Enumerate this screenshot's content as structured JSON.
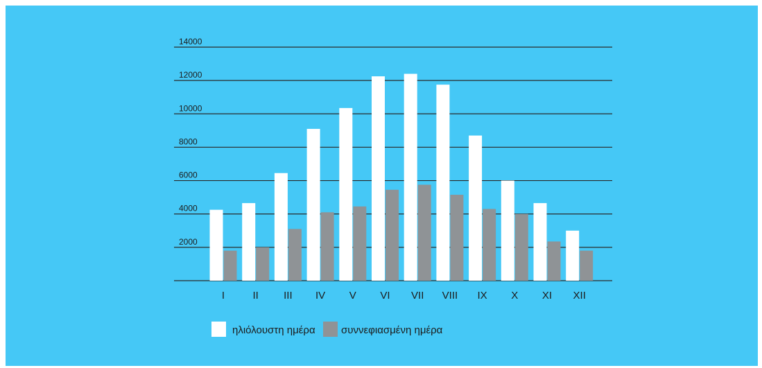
{
  "colors": {
    "background": "#45C8F6",
    "sunny": "#FFFFFF",
    "cloudy": "#8F9396",
    "gridline": "#2A2A2A"
  },
  "chart_data": {
    "type": "bar",
    "title": "",
    "xlabel": "",
    "ylabel": "",
    "ylim": [
      0,
      14000
    ],
    "yticks": [
      2000,
      4000,
      6000,
      8000,
      10000,
      12000,
      14000
    ],
    "grid": true,
    "legend_position": "bottom-left",
    "categories": [
      "I",
      "II",
      "III",
      "IV",
      "V",
      "VI",
      "VII",
      "VIII",
      "IX",
      "X",
      "XI",
      "XII"
    ],
    "series": [
      {
        "name": "ηλιόλουστη ημέρα",
        "color": "#FFFFFF",
        "values": [
          4250,
          4650,
          6450,
          9100,
          10350,
          12250,
          12400,
          11750,
          8700,
          6000,
          4650,
          3000
        ]
      },
      {
        "name": "συννεφιασμένη ημέρα",
        "color": "#8F9396",
        "values": [
          1800,
          2000,
          3100,
          4100,
          4450,
          5450,
          5750,
          5150,
          4300,
          4000,
          2350,
          1800
        ]
      }
    ]
  }
}
